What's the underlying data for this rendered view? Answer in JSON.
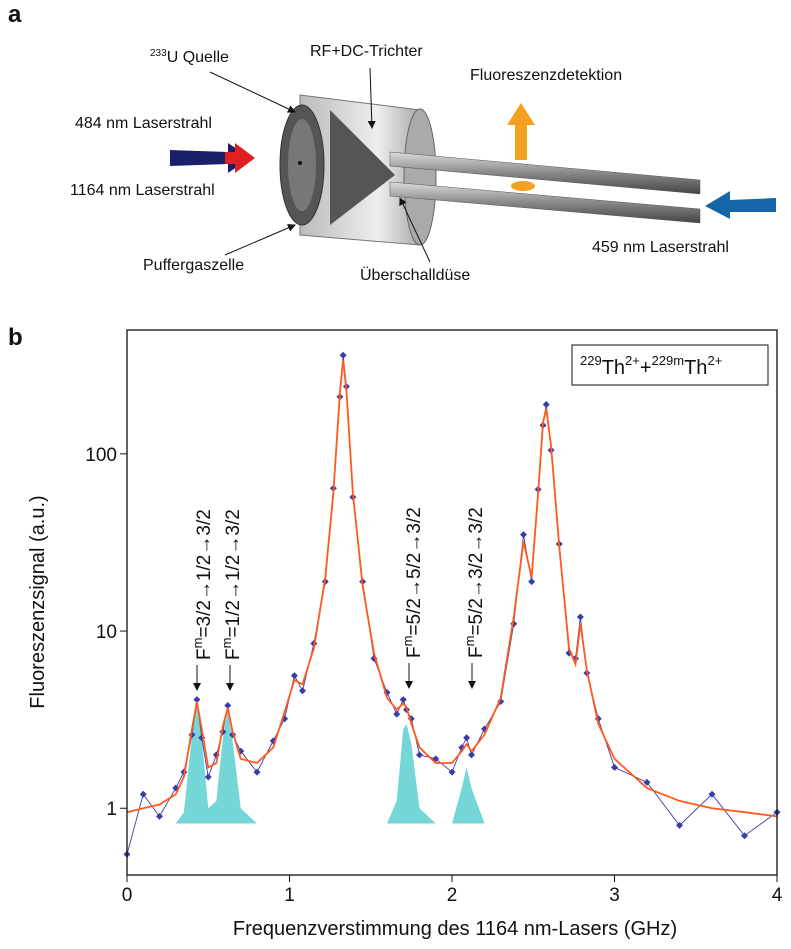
{
  "panel_a": {
    "panel_label": "a",
    "source_sup": "233",
    "source": "U Quelle",
    "funnel": "RF+DC-Trichter",
    "detection": "Fluoreszenzdetektion",
    "laser_484": "484 nm Laserstrahl",
    "laser_1164": "1164 nm Laserstrahl",
    "buffer_cell": "Puffergaszelle",
    "nozzle": "Überschalldüse",
    "laser_459": "459 nm Laserstrahl"
  },
  "chart_data": {
    "type": "scatter",
    "panel_label": "b",
    "log_y": true,
    "grid": false,
    "x_label": "Frequenzverstimmung des 1164 nm-Lasers (GHz)",
    "y_label": "Fluoreszenzsignal (a.u.)",
    "xlim": [
      0,
      4
    ],
    "xticks": [
      0,
      1,
      2,
      3,
      4
    ],
    "ylim": [
      0.42,
      500
    ],
    "yticks": [
      1,
      10,
      100
    ],
    "box_label": [
      "229",
      "Th",
      "2+",
      "+",
      "229m",
      "Th",
      "2+"
    ],
    "annotations": [
      {
        "base": "F",
        "sup": "m",
        "rest": "=3/2→1/2→3/2"
      },
      {
        "base": "F",
        "sup": "m",
        "rest": "=1/2→1/2→3/2"
      },
      {
        "base": "F",
        "sup": "m",
        "rest": "=5/2→5/2→3/2"
      },
      {
        "base": "F",
        "sup": "m",
        "rest": "=5/2→3/2→3/2"
      }
    ],
    "x": [
      0,
      0.1,
      0.2,
      0.3,
      0.35,
      0.4,
      0.43,
      0.46,
      0.5,
      0.55,
      0.59,
      0.62,
      0.65,
      0.7,
      0.8,
      0.9,
      0.97,
      1.03,
      1.08,
      1.15,
      1.22,
      1.27,
      1.31,
      1.33,
      1.35,
      1.39,
      1.45,
      1.52,
      1.6,
      1.66,
      1.7,
      1.72,
      1.75,
      1.8,
      1.9,
      2.0,
      2.06,
      2.09,
      2.12,
      2.2,
      2.3,
      2.38,
      2.44,
      2.49,
      2.53,
      2.56,
      2.58,
      2.61,
      2.66,
      2.72,
      2.76,
      2.79,
      2.83,
      2.9,
      3.0,
      3.2,
      3.4,
      3.6,
      3.8,
      4.0
    ],
    "series": [
      {
        "style": "fill",
        "color": "#5ccfcf",
        "values": [
          0.82,
          0.82,
          0.82,
          0.82,
          0.95,
          2.6,
          3.9,
          2.5,
          1.0,
          1.1,
          2.5,
          3.6,
          2.4,
          1.0,
          0.82,
          0.82,
          0.82,
          0.82,
          0.82,
          0.82,
          0.82,
          0.82,
          0.82,
          0.82,
          0.82,
          0.82,
          0.82,
          0.82,
          0.82,
          1.1,
          2.8,
          3.0,
          2.3,
          1.0,
          0.82,
          0.82,
          1.3,
          1.7,
          1.3,
          0.82,
          0.82,
          0.82,
          0.82,
          0.82,
          0.82,
          0.82,
          0.82,
          0.82,
          0.82,
          0.82,
          0.82,
          0.82,
          0.82,
          0.82,
          0.82,
          0.82,
          0.82,
          0.82,
          0.82,
          0.82
        ]
      },
      {
        "style": "points",
        "color": "#3c3ca8",
        "values": [
          0.55,
          1.2,
          0.9,
          1.3,
          1.6,
          2.6,
          4.1,
          2.5,
          1.5,
          2.0,
          2.7,
          3.8,
          2.6,
          2.1,
          1.6,
          2.4,
          3.2,
          5.6,
          4.6,
          8.5,
          19,
          64,
          210,
          360,
          240,
          57,
          19,
          7,
          4.5,
          3.4,
          4.1,
          3.6,
          3.2,
          2.0,
          1.9,
          1.6,
          2.2,
          2.5,
          2.0,
          2.8,
          4.0,
          11,
          35,
          19,
          63,
          145,
          190,
          105,
          31,
          7.5,
          7,
          12,
          5.8,
          3.2,
          1.7,
          1.4,
          0.8,
          1.2,
          0.7,
          0.95
        ]
      },
      {
        "style": "line",
        "color": "#ff5a1e",
        "values": [
          0.95,
          1.0,
          1.05,
          1.2,
          1.5,
          2.8,
          4.0,
          2.8,
          1.7,
          1.8,
          2.9,
          3.7,
          2.7,
          1.9,
          1.8,
          2.2,
          3.5,
          5.3,
          5.0,
          8,
          20,
          60,
          220,
          340,
          230,
          60,
          18,
          7.5,
          4.2,
          3.6,
          3.9,
          3.7,
          3.0,
          2.2,
          1.8,
          1.8,
          2.1,
          2.3,
          2.1,
          2.6,
          4.2,
          12,
          32,
          20,
          60,
          150,
          180,
          110,
          30,
          8,
          6.5,
          11,
          6,
          3,
          1.9,
          1.3,
          1.1,
          1.0,
          0.95,
          0.9
        ]
      }
    ]
  }
}
